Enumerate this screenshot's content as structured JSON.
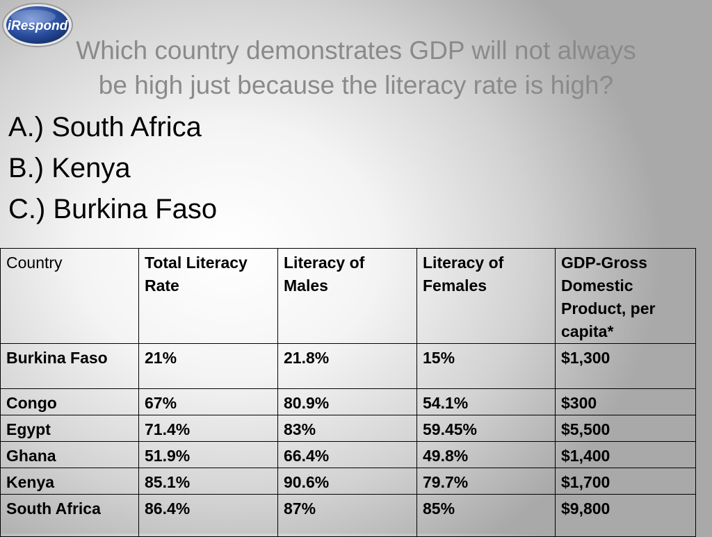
{
  "logo": {
    "text": "iRespond"
  },
  "question": {
    "line1": "Which country demonstrates GDP will not always",
    "line2": "be high just because the literacy rate is high?"
  },
  "options": [
    "A.) South Africa",
    "B.) Kenya",
    "C.) Burkina Faso"
  ],
  "table": {
    "headers": [
      "Country",
      "Total Literacy Rate",
      "Literacy of Males",
      "Literacy of Females",
      "GDP-Gross Domestic Product, per capita*"
    ],
    "rows": [
      [
        "Burkina Faso",
        "21%",
        "21.8%",
        "15%",
        "$1,300"
      ],
      [
        "Congo",
        "67%",
        "80.9%",
        "54.1%",
        "$300"
      ],
      [
        "Egypt",
        "71.4%",
        "83%",
        "59.45%",
        "$5,500"
      ],
      [
        "Ghana",
        "51.9%",
        "66.4%",
        "49.8%",
        "$1,400"
      ],
      [
        "Kenya",
        "85.1%",
        "90.6%",
        "79.7%",
        "$1,700"
      ],
      [
        "South Africa",
        "86.4%",
        "87%",
        "85%",
        "$9,800"
      ]
    ]
  },
  "colors": {
    "logo_blue": "#2a4fa0",
    "question_gray": "#8a8a8a"
  }
}
